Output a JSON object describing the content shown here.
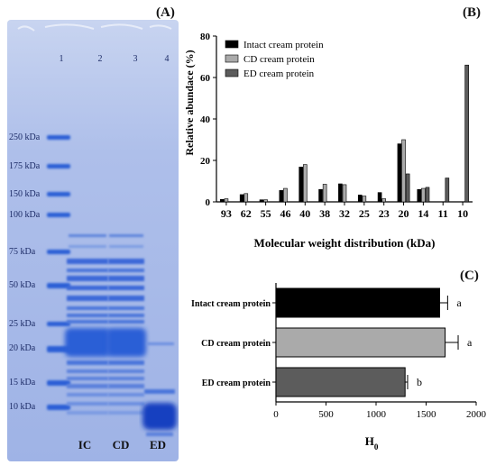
{
  "panels": {
    "a_label": "(A)",
    "b_label": "(B)",
    "c_label": "(C)"
  },
  "gel": {
    "lane_numbers": [
      "1",
      "2",
      "3",
      "4"
    ],
    "markers": [
      "250 kDa",
      "175 kDa",
      "150 kDa",
      "100 kDa",
      "75 kDa",
      "50 kDa",
      "25 kDa",
      "20 kDa",
      "15 kDa",
      "10 kDa"
    ],
    "lane_labels": [
      "IC",
      "CD",
      "ED"
    ],
    "colors": {
      "background": "#a6b9e6",
      "band": "#2a5fd6",
      "dark_band": "#1440c0"
    }
  },
  "chart_data": [
    {
      "type": "bar",
      "panel": "B",
      "categories": [
        "93",
        "62",
        "55",
        "46",
        "40",
        "38",
        "32",
        "25",
        "23",
        "20",
        "14",
        "11",
        "10"
      ],
      "series": [
        {
          "name": "Intact cream protein",
          "color": "#000000",
          "values": [
            1.2,
            3.5,
            1.0,
            5.5,
            16.8,
            6.0,
            8.7,
            3.3,
            4.5,
            28.0,
            6.0,
            0,
            0
          ]
        },
        {
          "name": "CD cream protein",
          "color": "#aaaaaa",
          "values": [
            1.5,
            4.0,
            1.0,
            6.5,
            18.0,
            8.5,
            8.3,
            2.8,
            1.5,
            30.0,
            6.5,
            0,
            0
          ]
        },
        {
          "name": "ED cream protein",
          "color": "#5c5c5c",
          "values": [
            0,
            0,
            0,
            0,
            0,
            0,
            0,
            0,
            0,
            13.5,
            7.0,
            11.5,
            66.0
          ]
        }
      ],
      "xlabel": "Molecular weight distribution (kDa)",
      "ylabel": "Relative abundace (%)",
      "ylim": [
        0,
        80
      ],
      "yticks": [
        "0",
        "20",
        "40",
        "60",
        "80"
      ],
      "legend_position": "top-left"
    },
    {
      "type": "bar",
      "panel": "C",
      "orientation": "horizontal",
      "categories": [
        "Intact cream protein",
        "CD cream protein",
        "ED cream protein"
      ],
      "values": [
        1635,
        1690,
        1290
      ],
      "errors": [
        80,
        130,
        25
      ],
      "significance": [
        "a",
        "a",
        "b"
      ],
      "colors": [
        "#000000",
        "#aaaaaa",
        "#5c5c5c"
      ],
      "xlabel": "H",
      "xlabel_sub": "0",
      "xlim": [
        0,
        2000
      ],
      "xticks": [
        "0",
        "500",
        "1000",
        "1500",
        "2000"
      ]
    }
  ]
}
